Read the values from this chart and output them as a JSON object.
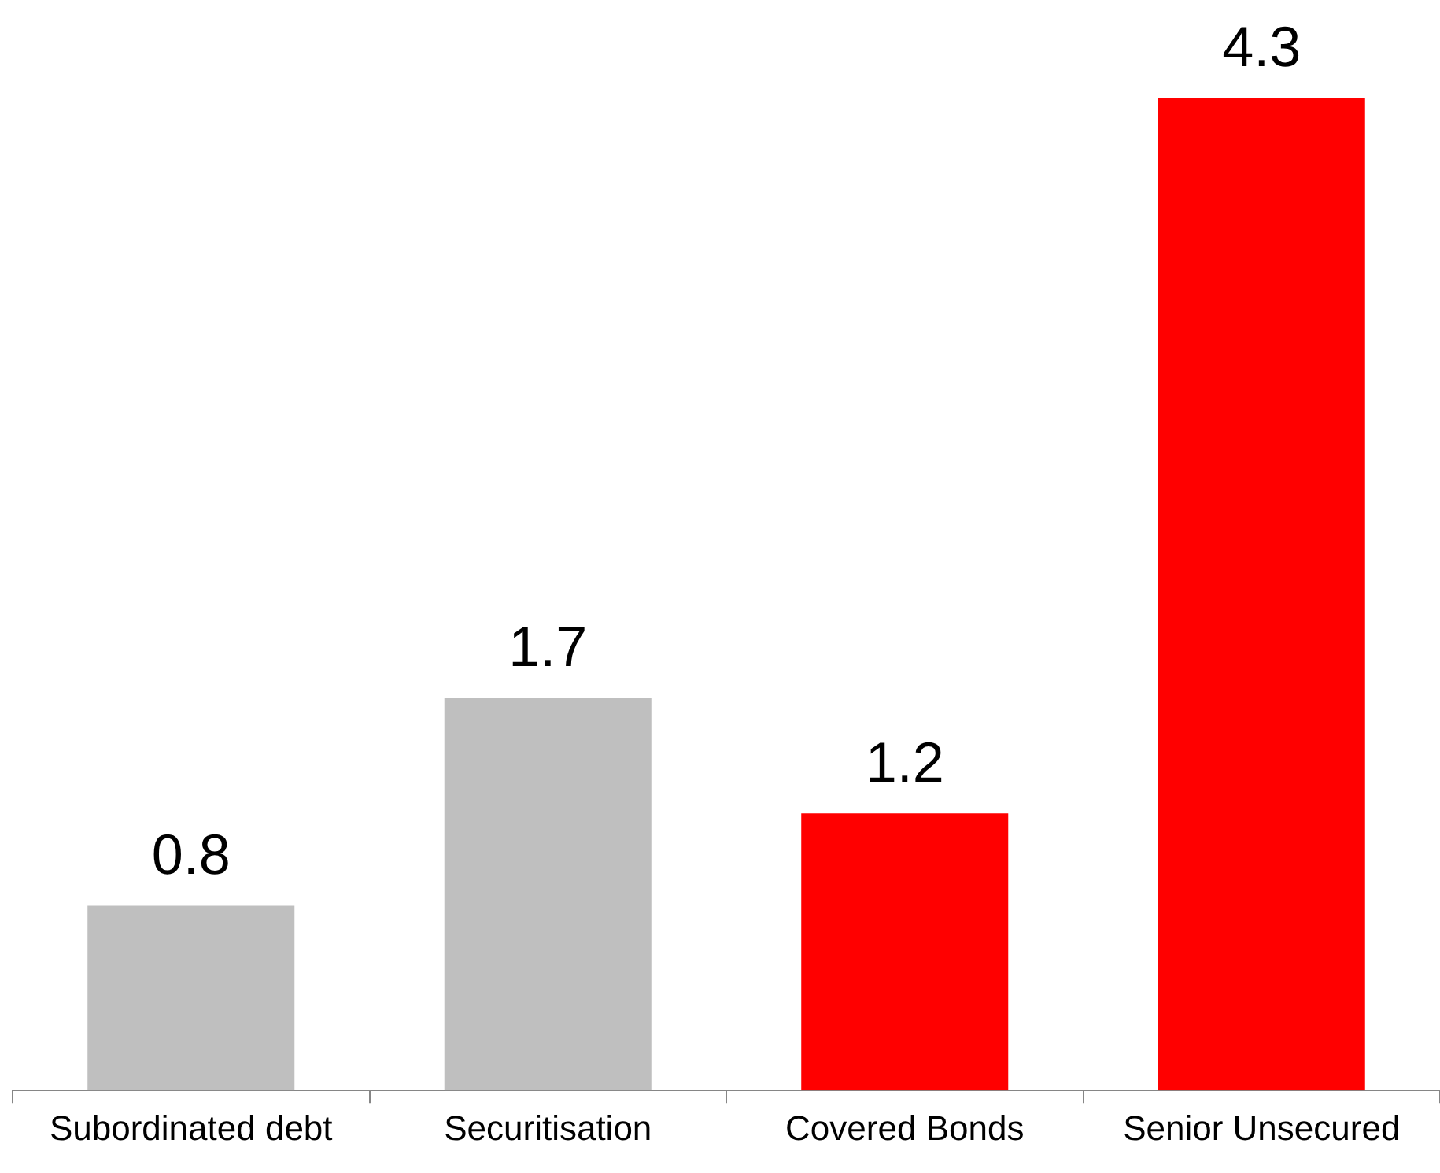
{
  "chart_data": {
    "type": "bar",
    "categories": [
      "Subordinated debt",
      "Securitisation",
      "Covered Bonds",
      "Senior Unsecured"
    ],
    "values": [
      0.8,
      1.7,
      1.2,
      4.3
    ],
    "colors": [
      "#bfbfbf",
      "#bfbfbf",
      "#ff0000",
      "#ff0000"
    ],
    "data_labels": true,
    "grid": false,
    "legend": false
  }
}
